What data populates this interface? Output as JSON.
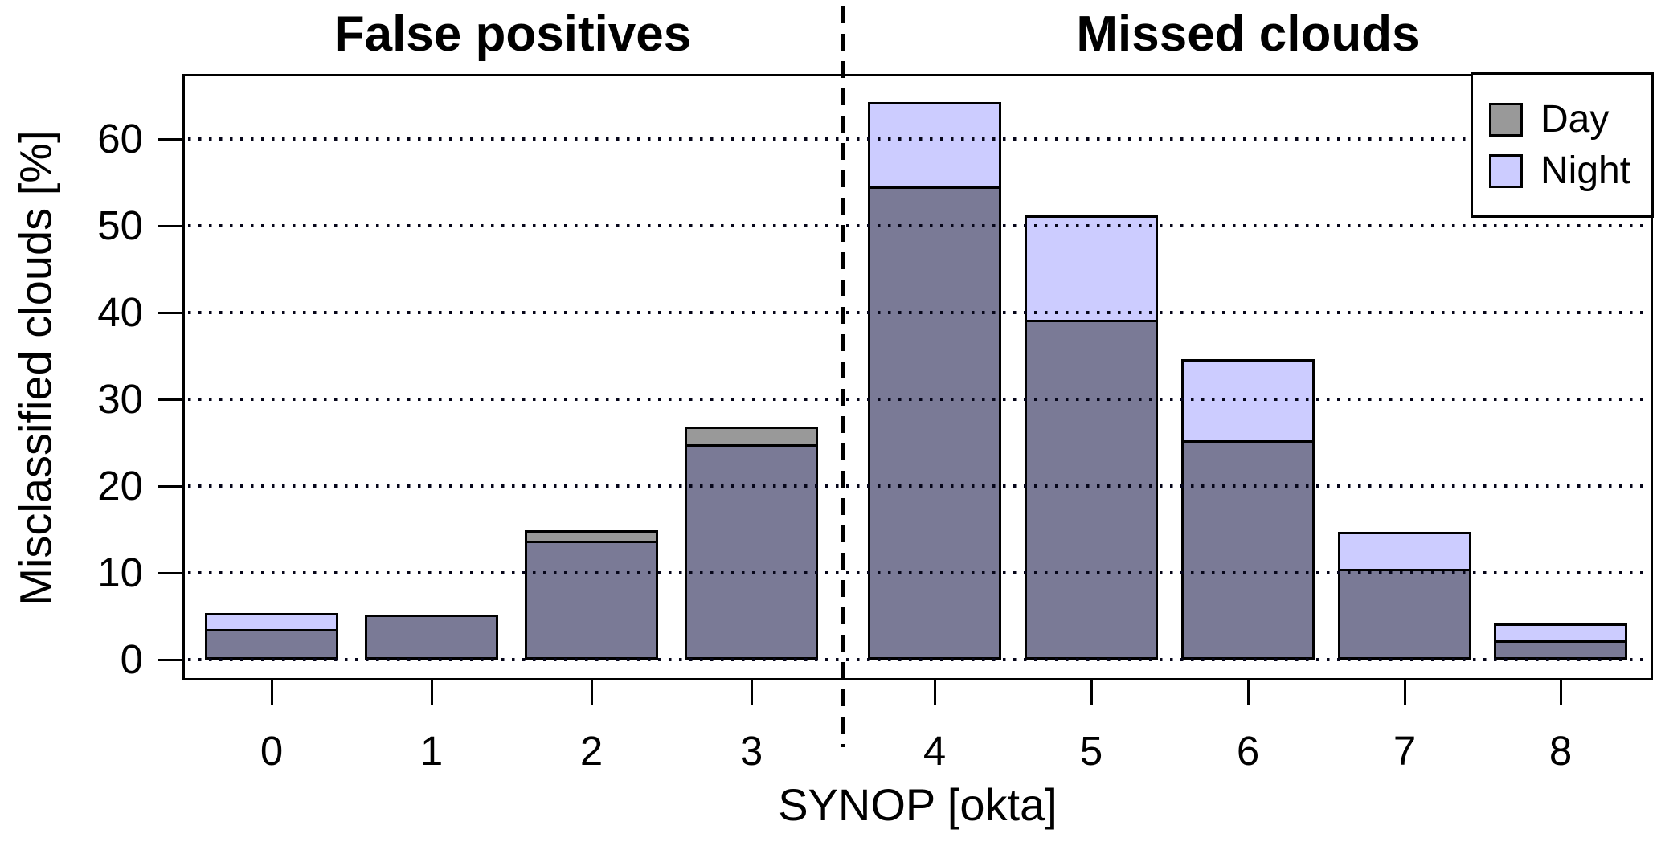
{
  "chart_data": {
    "type": "bar",
    "variant": "overlapping-bars",
    "title_left": "False positives",
    "title_right": "Missed clouds",
    "xlabel": "SYNOP [okta]",
    "ylabel": "Misclassified clouds [%]",
    "categories": [
      "0",
      "1",
      "2",
      "3",
      "4",
      "5",
      "6",
      "7",
      "8"
    ],
    "series": [
      {
        "name": "Day",
        "color": "#999999",
        "values": [
          3.5,
          5.2,
          14.9,
          26.9,
          54.5,
          39.2,
          25.3,
          10.5,
          2.2
        ]
      },
      {
        "name": "Night",
        "color": "#ccccff",
        "values": [
          5.4,
          5.2,
          13.7,
          24.8,
          64.3,
          51.2,
          34.6,
          14.7,
          4.2
        ]
      }
    ],
    "overlap_color": "#7a7a96",
    "ylim": [
      0,
      67
    ],
    "yticks": [
      0,
      10,
      20,
      30,
      40,
      50,
      60
    ],
    "grid": "dotted-horizontal",
    "divider": "dashed vertical line between category 3 and 4",
    "legend_position": "top-right",
    "legend_items": [
      "Day",
      "Night"
    ]
  }
}
